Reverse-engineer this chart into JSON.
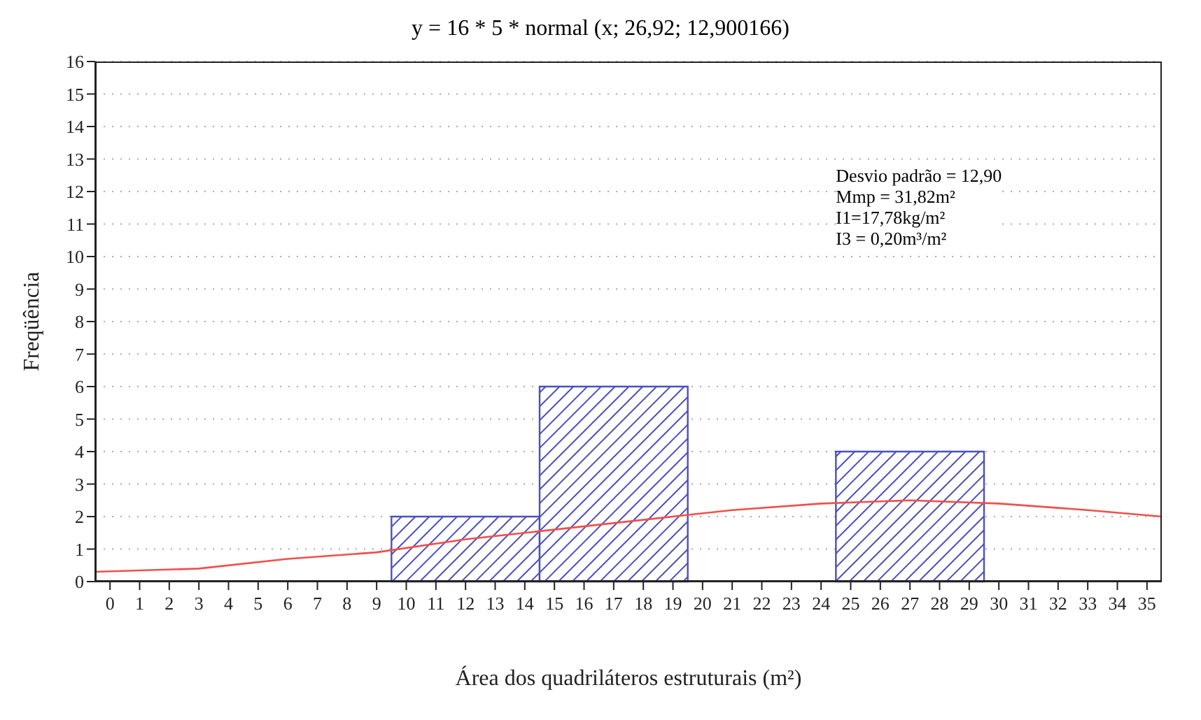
{
  "chart_data": {
    "type": "histogram",
    "title": "y = 16 * 5 * normal (x; 26,92; 12,900166)",
    "xlabel": "Área dos quadriláteros estruturais (m²)",
    "ylabel": "Freqüência",
    "bins": [
      9.5,
      14.5,
      19.5,
      24.5,
      29.5
    ],
    "values": [
      2,
      6,
      0,
      4
    ],
    "color": "#4a4fc0",
    "series": [
      {
        "type": "line",
        "color": "#f0504a",
        "x": [
          -0.5,
          3,
          6,
          9,
          12,
          15,
          18,
          21,
          24,
          27,
          30,
          33,
          35.5
        ],
        "values": [
          0.3,
          0.4,
          0.7,
          0.9,
          1.3,
          1.6,
          1.9,
          2.2,
          2.4,
          2.5,
          2.4,
          2.2,
          2.0
        ]
      }
    ],
    "xlim": [
      -0.5,
      35.5
    ],
    "xticks": [
      0,
      1,
      2,
      3,
      4,
      5,
      6,
      7,
      8,
      9,
      10,
      11,
      12,
      13,
      14,
      15,
      16,
      17,
      18,
      19,
      20,
      21,
      22,
      23,
      24,
      25,
      26,
      27,
      28,
      29,
      30,
      31,
      32,
      33,
      34,
      35
    ],
    "ylim": [
      0,
      16
    ],
    "yticks": [
      0,
      1,
      2,
      3,
      4,
      5,
      6,
      7,
      8,
      9,
      10,
      11,
      12,
      13,
      14,
      15,
      16
    ],
    "grid": "y",
    "legend": false,
    "annotations": [
      "Desvio padrão = 12,90",
      "Mmp = 31,82m²",
      "I1=17,78kg/m²",
      "I3 = 0,20m³/m²"
    ]
  }
}
